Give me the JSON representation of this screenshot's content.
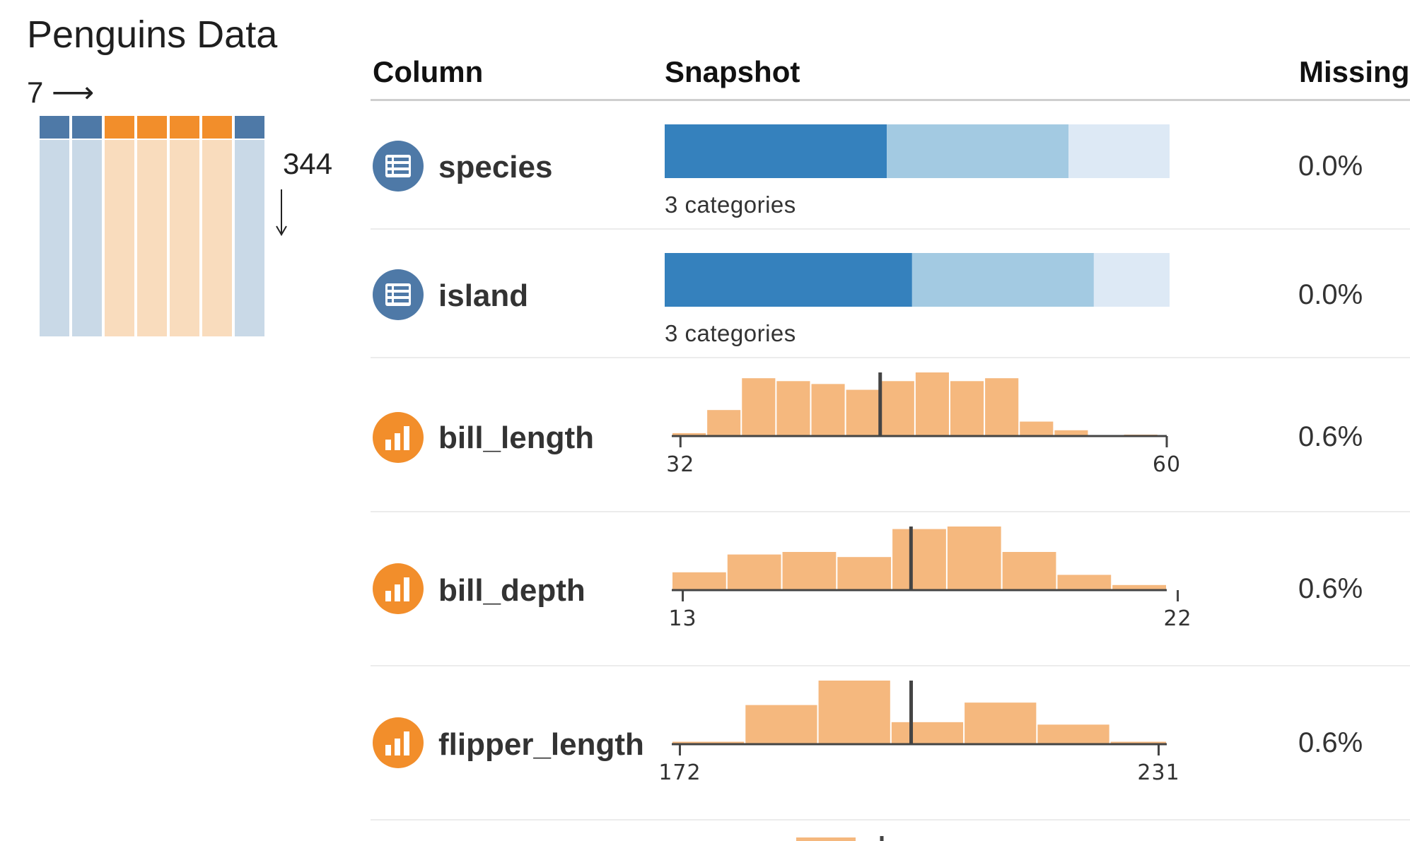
{
  "title": "Penguins Data",
  "overview": {
    "columns_label": "7",
    "columns_arrow": "⟶",
    "rows_label": "344",
    "rows_arrow": "↓",
    "column_types": [
      "categorical",
      "categorical",
      "numeric",
      "numeric",
      "numeric",
      "numeric",
      "categorical"
    ]
  },
  "table": {
    "headers": {
      "column": "Column",
      "snapshot": "Snapshot",
      "missing": "Missing"
    }
  },
  "colors": {
    "categorical_icon": "#4e79a7",
    "numeric_icon": "#f28e2b",
    "cat_dark": "#3581bd",
    "cat_mid": "#a3cae2",
    "cat_light": "#dde9f5",
    "hist_fill": "#f5b87e",
    "axis": "#444444",
    "overview_cat_bg": "#c9d9e7",
    "overview_num_bg": "#f9dcbd"
  },
  "rows": [
    {
      "name": "species",
      "type": "categorical",
      "icon": "list-icon",
      "caption": "3 categories",
      "missing": "0.0%",
      "chart_data": {
        "type": "bar",
        "stacked": true,
        "categories": [
          "1",
          "2",
          "3"
        ],
        "values": [
          0.44,
          0.36,
          0.2
        ]
      }
    },
    {
      "name": "island",
      "type": "categorical",
      "icon": "list-icon",
      "caption": "3 categories",
      "missing": "0.0%",
      "chart_data": {
        "type": "bar",
        "stacked": true,
        "categories": [
          "1",
          "2",
          "3"
        ],
        "values": [
          0.49,
          0.36,
          0.15
        ]
      }
    },
    {
      "name": "bill_length",
      "type": "numeric",
      "icon": "bar-chart-icon",
      "missing": "0.6%",
      "chart_data": {
        "type": "bar",
        "xlim": [
          31.5,
          60.0
        ],
        "ticks": [
          32,
          60
        ],
        "bin_edges": [
          31.5,
          33.5,
          35.5,
          37.5,
          39.5,
          41.5,
          43.5,
          45.5,
          47.5,
          49.5,
          51.5,
          53.5,
          55.5,
          57.5,
          59.5
        ],
        "values": [
          1,
          9,
          20,
          19,
          18,
          16,
          19,
          22,
          19,
          20,
          5,
          2,
          0,
          0.5
        ],
        "marker": 43.5
      }
    },
    {
      "name": "bill_depth",
      "type": "numeric",
      "icon": "bar-chart-icon",
      "missing": "0.6%",
      "chart_data": {
        "type": "bar",
        "xlim": [
          12.8,
          21.8
        ],
        "ticks": [
          13,
          22
        ],
        "bin_edges": [
          12.8,
          13.8,
          14.8,
          15.8,
          16.8,
          17.8,
          18.8,
          19.8,
          20.8,
          21.8
        ],
        "values": [
          7,
          14,
          15,
          13,
          24,
          25,
          15,
          6,
          2
        ],
        "marker": 17.15
      }
    },
    {
      "name": "flipper_length",
      "type": "numeric",
      "icon": "bar-chart-icon",
      "missing": "0.6%",
      "chart_data": {
        "type": "bar",
        "xlim": [
          171,
          232
        ],
        "ticks": [
          172,
          231
        ],
        "bin_edges": [
          171,
          180,
          189,
          198,
          207,
          216,
          225,
          232
        ],
        "values": [
          1,
          16,
          26,
          9,
          17,
          8,
          1
        ],
        "marker": 200.5
      }
    }
  ]
}
